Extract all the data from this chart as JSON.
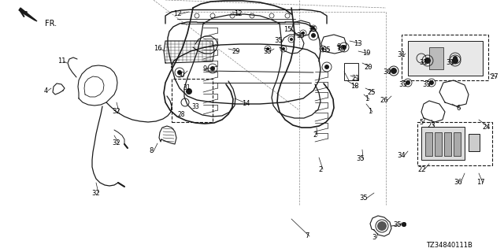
{
  "bg_color": "#ffffff",
  "line_color": "#1a1a1a",
  "text_color": "#000000",
  "diagram_code": "TZ34840111B",
  "fig_w": 6.4,
  "fig_h": 3.2,
  "dpi": 100
}
